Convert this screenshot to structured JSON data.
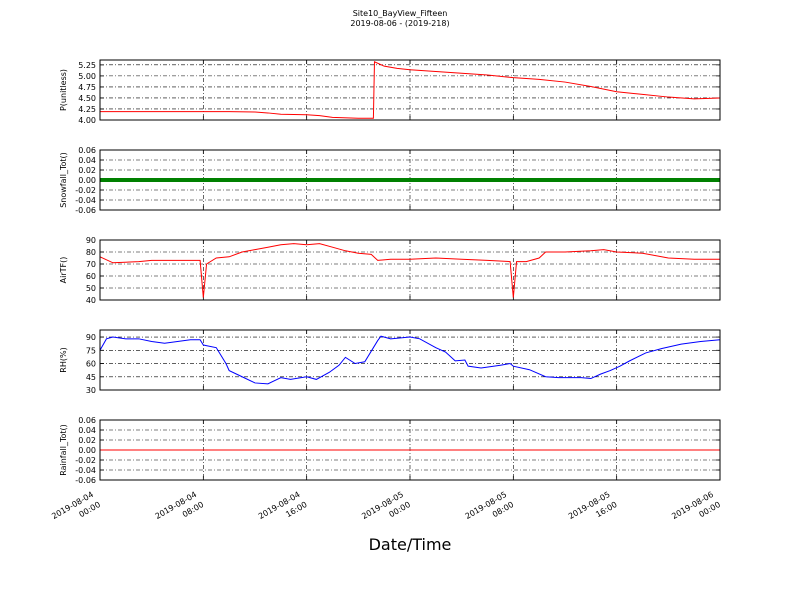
{
  "title": "Site10_BayView_Fifteen",
  "subtitle": "2019-08-06 - (2019-218)",
  "xlabel": "Date/Time",
  "xlim": [
    "2019-08-04 00:00",
    "2019-08-06 00:00"
  ],
  "xticks": [
    {
      "value": "2019-08-04 00:00",
      "label": [
        "2019-08-04",
        "00:00"
      ]
    },
    {
      "value": "2019-08-04 08:00",
      "label": [
        "2019-08-04",
        "08:00"
      ]
    },
    {
      "value": "2019-08-04 16:00",
      "label": [
        "2019-08-04",
        "16:00"
      ]
    },
    {
      "value": "2019-08-05 00:00",
      "label": [
        "2019-08-05",
        "00:00"
      ]
    },
    {
      "value": "2019-08-05 08:00",
      "label": [
        "2019-08-05",
        "08:00"
      ]
    },
    {
      "value": "2019-08-05 16:00",
      "label": [
        "2019-08-05",
        "16:00"
      ]
    },
    {
      "value": "2019-08-06 00:00",
      "label": [
        "2019-08-06",
        "00:00"
      ]
    }
  ],
  "chart_data": [
    {
      "type": "line",
      "ylabel": "P(unitless)",
      "color": "#ff0000",
      "linewidth": 1,
      "grid": true,
      "ylim": [
        4.0,
        5.36
      ],
      "yticks": [
        {
          "value": 4.0,
          "label": "4.00"
        },
        {
          "value": 4.25,
          "label": "4.25"
        },
        {
          "value": 4.5,
          "label": "4.50"
        },
        {
          "value": 4.75,
          "label": "4.75"
        },
        {
          "value": 5.0,
          "label": "5.00"
        },
        {
          "value": 5.25,
          "label": "5.25"
        }
      ],
      "x": [
        "2019-08-04 00:00",
        "2019-08-04 10:00",
        "2019-08-04 12:00",
        "2019-08-04 13:00",
        "2019-08-04 14:00",
        "2019-08-04 16:00",
        "2019-08-04 17:00",
        "2019-08-04 18:00",
        "2019-08-04 20:00",
        "2019-08-04 21:10",
        "2019-08-04 21:15",
        "2019-08-04 22:00",
        "2019-08-04 23:00",
        "2019-08-05 00:00",
        "2019-08-05 02:00",
        "2019-08-05 04:00",
        "2019-08-05 06:00",
        "2019-08-05 08:00",
        "2019-08-05 10:00",
        "2019-08-05 12:00",
        "2019-08-05 14:00",
        "2019-08-05 16:00",
        "2019-08-05 18:00",
        "2019-08-05 20:00",
        "2019-08-05 22:00",
        "2019-08-06 00:00"
      ],
      "values": [
        4.19,
        4.19,
        4.18,
        4.16,
        4.13,
        4.12,
        4.1,
        4.06,
        4.04,
        4.04,
        5.32,
        5.22,
        5.17,
        5.14,
        5.1,
        5.06,
        5.02,
        4.96,
        4.92,
        4.86,
        4.76,
        4.64,
        4.58,
        4.52,
        4.48,
        4.5
      ]
    },
    {
      "type": "line",
      "ylabel": "Snowfall_Tot()",
      "color": "#008000",
      "linewidth": 4,
      "grid": true,
      "ylim": [
        -0.06,
        0.06
      ],
      "yticks": [
        {
          "value": -0.06,
          "label": "-0.06"
        },
        {
          "value": -0.04,
          "label": "-0.04"
        },
        {
          "value": -0.02,
          "label": "-0.02"
        },
        {
          "value": 0,
          "label": "0.00"
        },
        {
          "value": 0.02,
          "label": "0.02"
        },
        {
          "value": 0.04,
          "label": "0.04"
        },
        {
          "value": 0.06,
          "label": "0.06"
        }
      ],
      "x": [
        "2019-08-04 00:00",
        "2019-08-06 00:00"
      ],
      "values": [
        0,
        0
      ]
    },
    {
      "type": "line",
      "ylabel": "AirTF()",
      "color": "#ff0000",
      "linewidth": 1,
      "grid": true,
      "ylim": [
        40,
        90
      ],
      "yticks": [
        40,
        50,
        60,
        70,
        80,
        90
      ],
      "x": [
        "2019-08-04 00:00",
        "2019-08-04 01:00",
        "2019-08-04 03:00",
        "2019-08-04 04:00",
        "2019-08-04 07:45",
        "2019-08-04 08:00",
        "2019-08-04 08:15",
        "2019-08-04 09:00",
        "2019-08-04 10:00",
        "2019-08-04 11:00",
        "2019-08-04 12:00",
        "2019-08-04 13:00",
        "2019-08-04 14:00",
        "2019-08-04 15:00",
        "2019-08-04 16:00",
        "2019-08-04 17:00",
        "2019-08-04 18:00",
        "2019-08-04 19:00",
        "2019-08-04 20:00",
        "2019-08-04 21:00",
        "2019-08-04 21:30",
        "2019-08-04 22:30",
        "2019-08-05 00:00",
        "2019-08-05 02:00",
        "2019-08-05 04:00",
        "2019-08-05 06:00",
        "2019-08-05 07:45",
        "2019-08-05 08:00",
        "2019-08-05 08:15",
        "2019-08-05 09:00",
        "2019-08-05 10:00",
        "2019-08-05 10:30",
        "2019-08-05 12:00",
        "2019-08-05 14:00",
        "2019-08-05 15:00",
        "2019-08-05 16:00",
        "2019-08-05 18:00",
        "2019-08-05 20:00",
        "2019-08-05 22:00",
        "2019-08-06 00:00"
      ],
      "values": [
        76,
        71,
        72,
        73,
        73,
        42,
        70,
        75,
        76,
        80,
        82,
        84,
        86,
        87,
        86,
        87,
        84,
        81,
        79,
        78,
        73,
        74,
        74,
        75,
        74,
        73,
        72,
        42,
        72,
        72,
        75,
        80,
        80,
        81,
        82,
        80,
        79,
        75,
        74,
        74
      ]
    },
    {
      "type": "line",
      "ylabel": "RH(%)",
      "color": "#0000ff",
      "linewidth": 1,
      "grid": true,
      "ylim": [
        30,
        98
      ],
      "yticks": [
        30,
        45,
        60,
        75,
        90
      ],
      "x": [
        "2019-08-04 00:00",
        "2019-08-04 00:30",
        "2019-08-04 01:00",
        "2019-08-04 02:00",
        "2019-08-04 03:00",
        "2019-08-04 04:00",
        "2019-08-04 05:00",
        "2019-08-04 06:00",
        "2019-08-04 07:00",
        "2019-08-04 07:45",
        "2019-08-04 08:00",
        "2019-08-04 09:00",
        "2019-08-04 09:45",
        "2019-08-04 10:00",
        "2019-08-04 11:00",
        "2019-08-04 12:00",
        "2019-08-04 13:00",
        "2019-08-04 14:00",
        "2019-08-04 14:45",
        "2019-08-04 16:00",
        "2019-08-04 16:45",
        "2019-08-04 17:45",
        "2019-08-04 18:30",
        "2019-08-04 19:00",
        "2019-08-04 19:45",
        "2019-08-04 20:30",
        "2019-08-04 21:30",
        "2019-08-04 21:45",
        "2019-08-04 22:30",
        "2019-08-05 00:00",
        "2019-08-05 00:45",
        "2019-08-05 02:00",
        "2019-08-05 02:45",
        "2019-08-05 03:30",
        "2019-08-05 04:15",
        "2019-08-05 04:30",
        "2019-08-05 05:30",
        "2019-08-05 07:00",
        "2019-08-05 07:45",
        "2019-08-05 08:00",
        "2019-08-05 09:15",
        "2019-08-05 10:30",
        "2019-08-05 11:30",
        "2019-08-05 13:15",
        "2019-08-05 14:00",
        "2019-08-05 14:45",
        "2019-08-05 15:30",
        "2019-08-05 16:15",
        "2019-08-05 17:00",
        "2019-08-05 18:15",
        "2019-08-05 19:30",
        "2019-08-05 21:00",
        "2019-08-05 22:30",
        "2019-08-06 00:00"
      ],
      "values": [
        75,
        88,
        90,
        88,
        88,
        85,
        83,
        85,
        87,
        87,
        81,
        78,
        60,
        52,
        45,
        38,
        37,
        44,
        42,
        45,
        42,
        50,
        58,
        67,
        60,
        62,
        86,
        91,
        88,
        90,
        88,
        78,
        73,
        63,
        64,
        57,
        55,
        58,
        60,
        57,
        53,
        45,
        44,
        44,
        43,
        48,
        52,
        57,
        63,
        72,
        77,
        82,
        85,
        87
      ]
    },
    {
      "type": "line",
      "ylabel": "Rainfall_Tot()",
      "color": "#ff0000",
      "linewidth": 1,
      "grid": true,
      "ylim": [
        -0.06,
        0.06
      ],
      "yticks": [
        {
          "value": -0.06,
          "label": "-0.06"
        },
        {
          "value": -0.04,
          "label": "-0.04"
        },
        {
          "value": -0.02,
          "label": "-0.02"
        },
        {
          "value": 0,
          "label": "0.00"
        },
        {
          "value": 0.02,
          "label": "0.02"
        },
        {
          "value": 0.04,
          "label": "0.04"
        },
        {
          "value": 0.06,
          "label": "0.06"
        }
      ],
      "x": [
        "2019-08-04 00:00",
        "2019-08-06 00:00"
      ],
      "values": [
        0,
        0
      ]
    }
  ]
}
